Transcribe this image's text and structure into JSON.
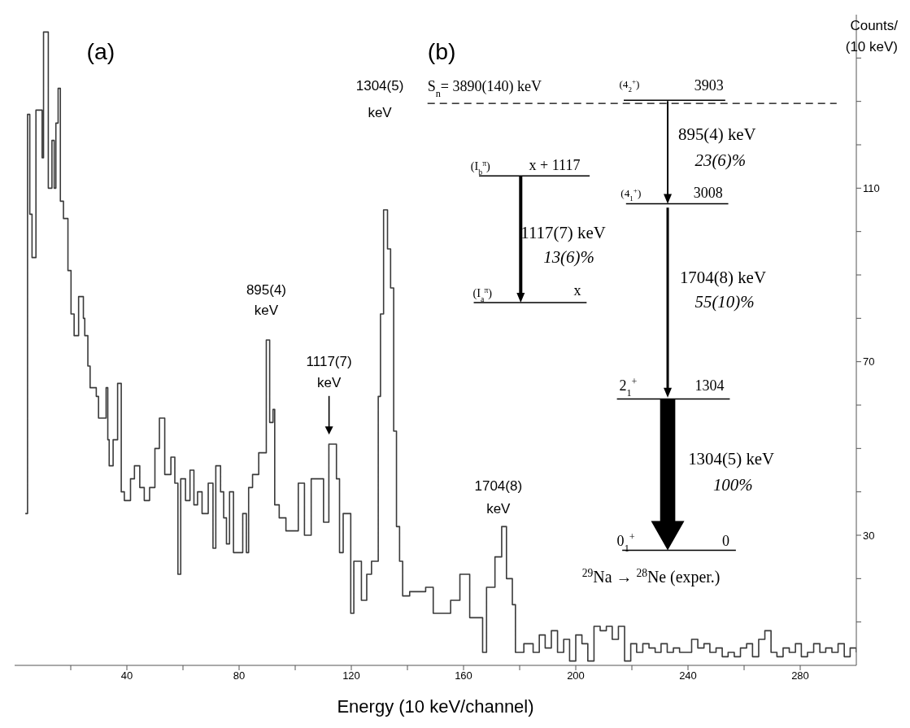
{
  "chart_data": {
    "type": "step",
    "xlabel": "Energy (10 keV/channel)",
    "ylabel": "Counts/ (10 keV)",
    "color": "#3a3a3a",
    "x": [
      3.8,
      4.6,
      5.4,
      6.2,
      7.6,
      9.8,
      10.3,
      12,
      13.3,
      14.1,
      14.7,
      15.5,
      16.3,
      17.4,
      19,
      20.1,
      21.2,
      22.8,
      24.5,
      25,
      26.1,
      26.9,
      28.3,
      29.1,
      29.9,
      32.6,
      33.2,
      33.7,
      35.1,
      36.7,
      38,
      39.1,
      41.3,
      42.7,
      44.6,
      46.2,
      48.1,
      50,
      51.6,
      53.5,
      55.7,
      57.1,
      58.2,
      59.2,
      60.9,
      62.5,
      63.9,
      65.2,
      66.8,
      69,
      70.7,
      71.7,
      73.4,
      74.5,
      75.5,
      76.6,
      78,
      79.3,
      81.3,
      82.6,
      83.4,
      84.8,
      87,
      89.7,
      90.9,
      92.1,
      92.7,
      94.3,
      96.7,
      101.1,
      103.3,
      105.7,
      110.1,
      112,
      114.7,
      115.8,
      117.1,
      119.8,
      120.9,
      123.6,
      125.5,
      127.2,
      129.6,
      130.4,
      131.5,
      132.9,
      134,
      135.1,
      136.1,
      137.2,
      138.3,
      140.8,
      146.5,
      149.2,
      155.4,
      158.7,
      162.2,
      166.8,
      168.2,
      171.2,
      173.6,
      175.3,
      177.4,
      178.5,
      181.5,
      182.6,
      184.8,
      187,
      189.1,
      191.3,
      193.5,
      195.7,
      197.8,
      200,
      202.2,
      204.3,
      206.5,
      208.7,
      210.9,
      213,
      215.2,
      217.4,
      219.6,
      221.7,
      223.9,
      226.1,
      228.3,
      230.4,
      232.6,
      234.8,
      237,
      239.1,
      241.3,
      243.5,
      245.7,
      247.8,
      250,
      252.2,
      254.3,
      256.5,
      258.7,
      260.9,
      263,
      265.2,
      267.4,
      269.6,
      271.7,
      273.9,
      276.1,
      278.3,
      280.4,
      282.6,
      284.8,
      287,
      289.1,
      291.3,
      293.5,
      295.7,
      297.8,
      300
    ],
    "values": [
      35,
      127,
      104,
      94,
      128,
      117,
      146,
      110,
      121,
      110,
      125,
      133,
      107,
      103,
      91,
      81,
      76,
      85,
      80,
      76,
      69,
      64,
      64,
      62,
      57,
      64,
      52,
      46,
      52,
      65,
      40,
      38,
      43,
      46,
      41,
      38,
      41,
      50,
      57,
      44,
      48,
      42,
      21,
      43,
      38,
      45,
      37,
      40,
      35,
      42,
      27,
      46,
      40,
      34,
      28,
      40,
      26,
      26,
      35,
      26,
      41,
      44,
      49,
      75,
      56,
      59,
      37,
      34,
      31,
      42,
      30,
      43,
      33,
      51,
      43,
      26,
      35,
      12,
      24,
      15,
      21,
      24,
      62,
      81,
      105,
      96,
      87,
      54,
      32,
      24,
      16,
      17,
      18,
      12,
      15,
      21,
      11,
      3,
      18,
      25,
      32,
      20,
      14,
      3,
      5,
      5,
      3,
      7,
      4,
      8,
      3,
      6,
      1,
      7,
      5,
      1,
      9,
      8,
      9,
      6,
      9,
      1,
      5,
      3,
      5,
      4,
      3,
      5,
      3,
      4,
      3,
      3,
      6,
      4,
      5,
      3,
      4,
      2,
      3,
      2,
      4,
      5,
      2,
      6,
      8,
      3,
      2,
      4,
      3,
      5,
      2,
      3,
      5,
      3,
      4,
      3,
      5,
      2,
      4,
      3
    ],
    "xlim": [
      0,
      300
    ],
    "xticks": [
      {
        "value": 20,
        "label": null
      },
      40,
      {
        "value": 60,
        "label": null
      },
      80,
      {
        "value": 100,
        "label": null
      },
      120,
      {
        "value": 140,
        "label": null
      },
      160,
      {
        "value": 180,
        "label": null
      },
      200,
      {
        "value": 220,
        "label": null
      },
      240,
      {
        "value": 260,
        "label": null
      },
      280
    ],
    "ylim": [
      0,
      150
    ],
    "yticks": [
      {
        "value": 10,
        "label": null
      },
      {
        "value": 20,
        "label": null
      },
      30,
      {
        "value": 40,
        "label": null
      },
      {
        "value": 50,
        "label": null
      },
      {
        "value": 60,
        "label": null
      },
      70,
      {
        "value": 80,
        "label": null
      },
      {
        "value": 90,
        "label": null
      },
      {
        "value": 100,
        "label": null
      },
      110,
      {
        "value": 120,
        "label": null
      },
      {
        "value": 130,
        "label": null
      },
      {
        "value": 140,
        "label": null
      }
    ],
    "annotations": [
      "(a)",
      "(b)",
      {
        "text": "895(4) keV",
        "x": 89.7,
        "y": 75
      },
      "1117(7) keV",
      "1304(5) keV",
      {
        "text": "1704(8) keV",
        "x": 172.4,
        "y": 32
      },
      "S$_{n}$= 3890(140) keV",
      "(4$_{2}$$^{+}$)",
      "3903",
      "895(4) keV",
      "23(6)%",
      "(I$_{b}$$^{π}$)",
      "x + 1117",
      "1117(7) keV",
      "13(6)%",
      "(I$_{a}$$^{π}$)",
      "x",
      "(4$_{1}$$^{+}$)",
      "3008",
      "1704(8) keV",
      "55(10)%",
      "2$_{1}$$^{+}$",
      "1304",
      "1304(5) keV",
      "100%",
      "0$_{1}$$^{+}$",
      "0",
      "$^{29}$Na → $^{28}$Ne (exper.)"
    ]
  }
}
